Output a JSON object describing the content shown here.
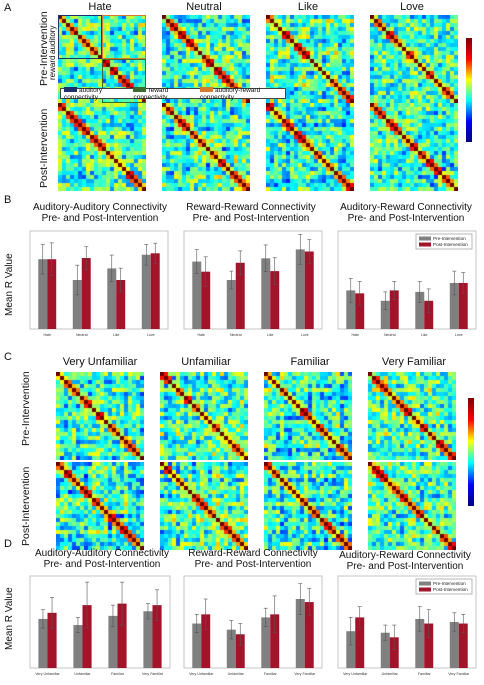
{
  "panels": {
    "A": {
      "letter": "A",
      "columns": [
        "Hate",
        "Neutral",
        "Like",
        "Love"
      ],
      "rows": [
        "Pre-Intervention",
        "Post-Intervention"
      ],
      "sublabels": [
        "auditory",
        "reward"
      ],
      "legend": [
        "auditory connectivity",
        "reward connectivity",
        "auditory-reward connectivity"
      ],
      "legend_colors": [
        "#1f2f6b",
        "#3d6b2f",
        "#d97a2a"
      ]
    },
    "B": {
      "letter": "B"
    },
    "C": {
      "letter": "C",
      "columns": [
        "Very Unfamiliar",
        "Unfamiliar",
        "Familiar",
        "Very Familiar"
      ],
      "rows": [
        "Pre-Intervention",
        "Post-Intervention"
      ]
    },
    "D": {
      "letter": "D"
    }
  },
  "colors": {
    "pre": "#808080",
    "post": "#a3142b"
  },
  "ylabel": "Mean R Value",
  "chart_data": [
    {
      "type": "bar",
      "panel": "B",
      "title": [
        "Auditory-Auditory Connectivity",
        "Pre- and Post-Intervention"
      ],
      "categories": [
        "Hate",
        "Neutral",
        "Like",
        "Love"
      ],
      "series": [
        {
          "name": "Pre-Intervention",
          "values": [
            0.285,
            0.215,
            0.254,
            0.3
          ]
        },
        {
          "name": "Post-Intervention",
          "values": [
            0.285,
            0.289,
            0.215,
            0.305
          ]
        }
      ],
      "errors": [
        [
          0.05,
          0.05,
          0.045,
          0.035
        ],
        [
          0.055,
          0.038,
          0.04,
          0.034
        ]
      ],
      "ylim": [
        0.05,
        0.38
      ]
    },
    {
      "type": "bar",
      "panel": "B",
      "title": [
        "Reward-Reward Connectivity",
        "Pre- and Post-Intervention"
      ],
      "categories": [
        "Hate",
        "Neutral",
        "Like",
        "Love"
      ],
      "series": [
        {
          "name": "Pre-Intervention",
          "values": [
            0.277,
            0.215,
            0.288,
            0.318
          ]
        },
        {
          "name": "Post-Intervention",
          "values": [
            0.243,
            0.273,
            0.245,
            0.311
          ]
        }
      ],
      "errors": [
        [
          0.04,
          0.03,
          0.045,
          0.05
        ],
        [
          0.05,
          0.04,
          0.045,
          0.04
        ]
      ],
      "ylim": [
        0.05,
        0.38
      ]
    },
    {
      "type": "bar",
      "panel": "B",
      "title": [
        "Auditory-Reward Connectivity",
        "Pre- and Post-Intervention"
      ],
      "categories": [
        "Hate",
        "Neutral",
        "Like",
        "Love"
      ],
      "series": [
        {
          "name": "Pre-Intervention",
          "values": [
            0.18,
            0.145,
            0.175,
            0.205
          ]
        },
        {
          "name": "Post-Intervention",
          "values": [
            0.17,
            0.18,
            0.145,
            0.205
          ]
        }
      ],
      "errors": [
        [
          0.04,
          0.03,
          0.035,
          0.04
        ],
        [
          0.04,
          0.03,
          0.04,
          0.035
        ]
      ],
      "legend": [
        "Pre-Intervention",
        "Post-Intervention"
      ],
      "ylim": [
        0.05,
        0.38
      ]
    },
    {
      "type": "bar",
      "panel": "D",
      "title": [
        "Auditory-Auditory Connectivity",
        "Pre- and Post-Intervention"
      ],
      "categories": [
        "Very Unfamiliar",
        "Unfamiliar",
        "Familiar",
        "Very Familiar"
      ],
      "series": [
        {
          "name": "Pre-Intervention",
          "values": [
            0.42,
            0.38,
            0.44,
            0.47
          ]
        },
        {
          "name": "Post-Intervention",
          "values": [
            0.46,
            0.51,
            0.52,
            0.51
          ]
        }
      ],
      "errors": [
        [
          0.06,
          0.05,
          0.07,
          0.05
        ],
        [
          0.1,
          0.15,
          0.14,
          0.1
        ]
      ],
      "ylim": [
        0.1,
        0.7
      ]
    },
    {
      "type": "bar",
      "panel": "D",
      "title": [
        "Reward-Reward Connectivity",
        "Pre- and Post-Intervention"
      ],
      "categories": [
        "Very Unfamiliar",
        "Unfamiliar",
        "Familiar",
        "Very Familiar"
      ],
      "series": [
        {
          "name": "Pre-Intervention",
          "values": [
            0.39,
            0.35,
            0.43,
            0.55
          ]
        },
        {
          "name": "Post-Intervention",
          "values": [
            0.45,
            0.32,
            0.45,
            0.53
          ]
        }
      ],
      "errors": [
        [
          0.06,
          0.06,
          0.06,
          0.1
        ],
        [
          0.1,
          0.07,
          0.12,
          0.09
        ]
      ],
      "ylim": [
        0.1,
        0.7
      ]
    },
    {
      "type": "bar",
      "panel": "D",
      "title": [
        "Auditory-Reward Connectivity",
        "Pre- and Post-Intervention"
      ],
      "categories": [
        "Very Unfamiliar",
        "Unfamiliar",
        "Familiar",
        "Very Familiar"
      ],
      "series": [
        {
          "name": "Pre-Intervention",
          "values": [
            0.34,
            0.33,
            0.42,
            0.4
          ]
        },
        {
          "name": "Post-Intervention",
          "values": [
            0.43,
            0.3,
            0.39,
            0.39
          ]
        }
      ],
      "errors": [
        [
          0.09,
          0.05,
          0.08,
          0.06
        ],
        [
          0.07,
          0.08,
          0.09,
          0.06
        ]
      ],
      "legend": [
        "Pre-Intervention",
        "Post-Intervention"
      ],
      "ylim": [
        0.1,
        0.7
      ]
    }
  ]
}
